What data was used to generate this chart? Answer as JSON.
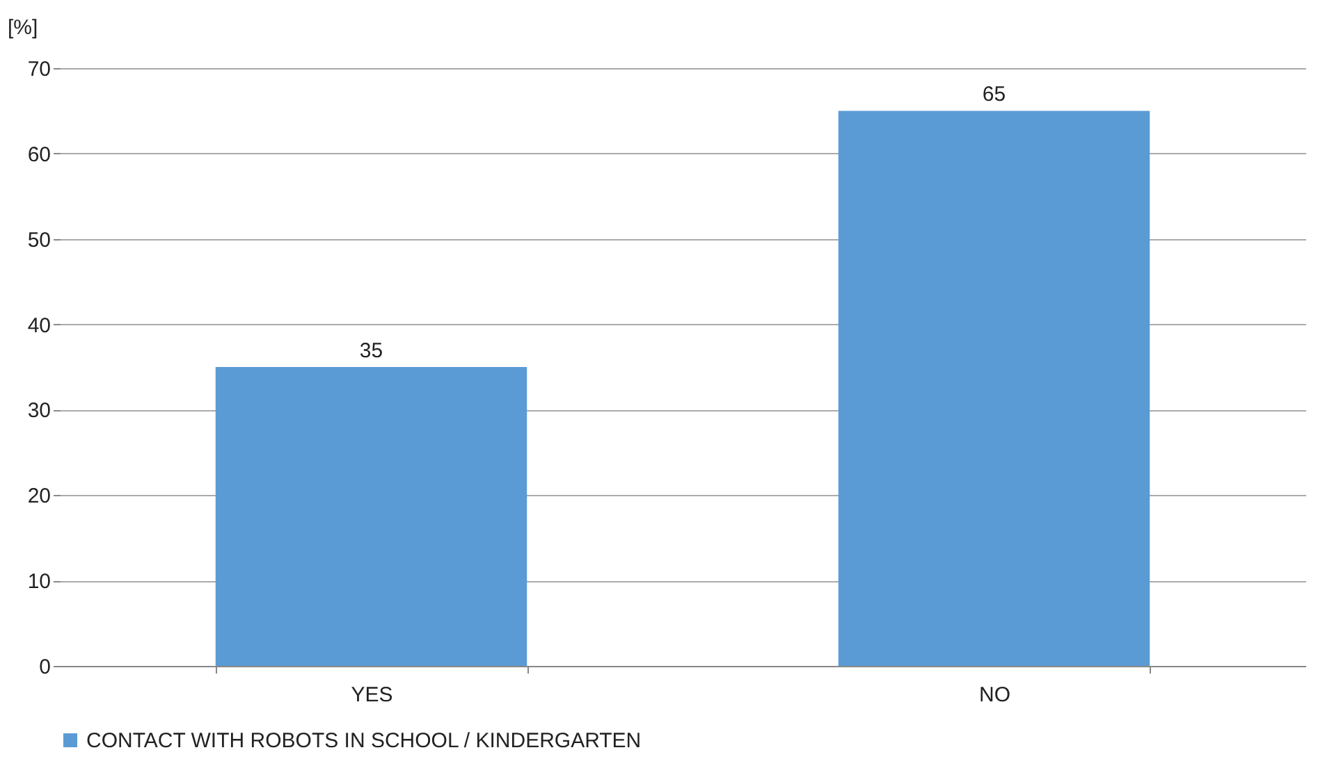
{
  "chart_data": {
    "type": "bar",
    "ylabel": "[%]",
    "categories": [
      "YES",
      "NO"
    ],
    "series": [
      {
        "name": "CONTACT WITH ROBOTS IN SCHOOL / KINDERGARTEN",
        "color": "#5b9bd5",
        "values": [
          35,
          65
        ]
      }
    ],
    "ylim": [
      0,
      70
    ],
    "yticks": [
      0,
      10,
      20,
      30,
      40,
      50,
      60,
      70
    ],
    "grid": "y",
    "legend": "bottom",
    "data_labels": true
  }
}
